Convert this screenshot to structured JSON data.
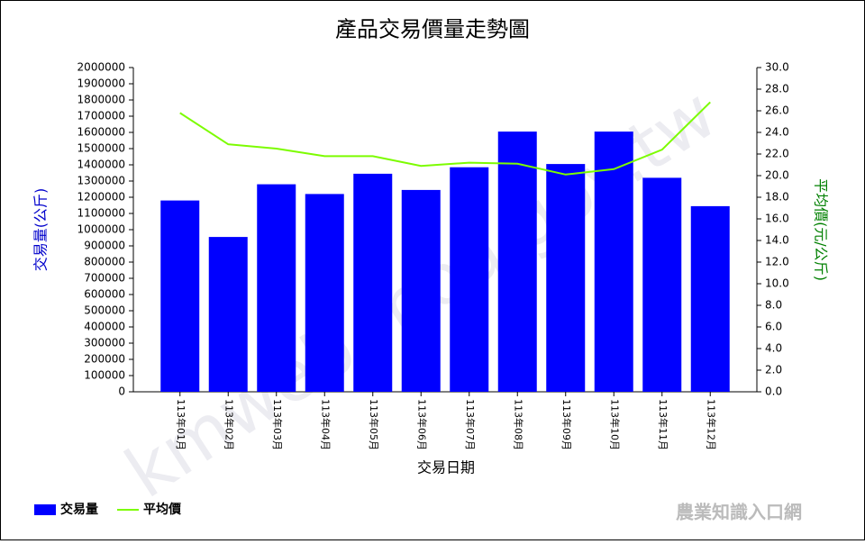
{
  "chart_data": {
    "type": "bar-line",
    "title": "產品交易價量走勢圖",
    "x_label": "交易日期",
    "y_label": "交易量(公斤)",
    "y2_label": "平均價(元/公斤)",
    "watermark": "kmweb.moa.gov.tw",
    "logo": "農業知識入口網",
    "categories": [
      "113年01月",
      "113年02月",
      "113年03月",
      "113年04月",
      "113年05月",
      "113年06月",
      "113年07月",
      "113年08月",
      "113年09月",
      "113年10月",
      "113年11月",
      "113年12月"
    ],
    "series": [
      {
        "name": "交易量",
        "type": "bar",
        "color": "#0000ff",
        "values": [
          1180000,
          955000,
          1280000,
          1220000,
          1345000,
          1245000,
          1385000,
          1605000,
          1405000,
          1605000,
          1320000,
          1145000
        ]
      },
      {
        "name": "平均價",
        "type": "line",
        "axis": "y2",
        "color": "#7cfc00",
        "values": [
          25.8,
          22.9,
          22.5,
          21.8,
          21.8,
          20.9,
          21.2,
          21.1,
          20.1,
          20.6,
          22.4,
          26.8
        ]
      }
    ],
    "ylim": [
      0,
      2000000
    ],
    "yticks": [
      0,
      100000,
      200000,
      300000,
      400000,
      500000,
      600000,
      700000,
      800000,
      900000,
      1000000,
      1100000,
      1200000,
      1300000,
      1400000,
      1500000,
      1600000,
      1700000,
      1800000,
      1900000,
      2000000
    ],
    "y2lim": [
      0,
      30
    ],
    "y2ticks": [
      {
        "value": 0,
        "label": "0.0"
      },
      {
        "value": 2,
        "label": "2.0"
      },
      {
        "value": 4,
        "label": "4.0"
      },
      {
        "value": 6,
        "label": "6.0"
      },
      {
        "value": 8,
        "label": "8.0"
      },
      {
        "value": 10,
        "label": "10.0"
      },
      {
        "value": 12,
        "label": "12.0"
      },
      {
        "value": 14,
        "label": "14.0"
      },
      {
        "value": 16,
        "label": "16.0"
      },
      {
        "value": 18,
        "label": "18.0"
      },
      {
        "value": 20,
        "label": "20.0"
      },
      {
        "value": 22,
        "label": "22.0"
      },
      {
        "value": 24,
        "label": "24.0"
      },
      {
        "value": 26,
        "label": "26.0"
      },
      {
        "value": 28,
        "label": "28.0"
      },
      {
        "value": 30,
        "label": "30.0"
      }
    ]
  }
}
